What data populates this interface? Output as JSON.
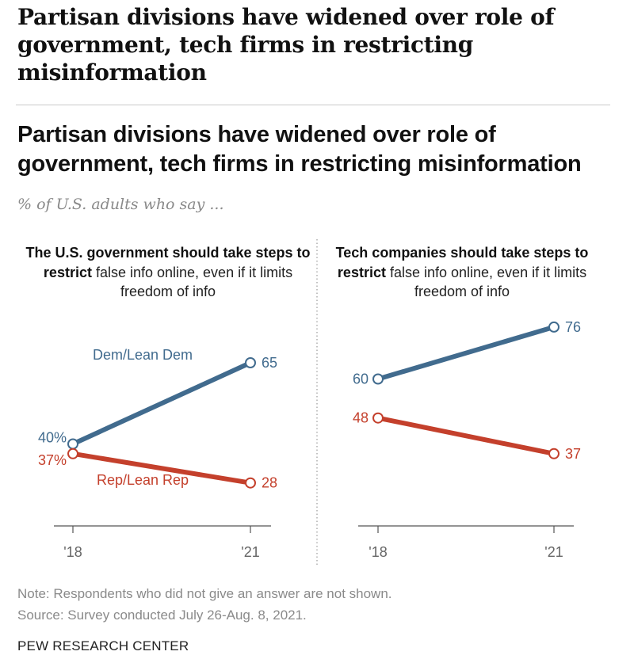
{
  "page_title": "Partisan divisions have widened over role of government, tech firms in restricting misinformation",
  "note": "Note: Respondents who did not give an answer are not shown.",
  "source": "Source: Survey conducted July 26-Aug. 8, 2021.",
  "brand": "PEW RESEARCH CENTER",
  "colors": {
    "dem": "#416b8e",
    "rep": "#c4402c",
    "axis": "#555555"
  },
  "chart_data": [
    {
      "type": "line",
      "title": "Partisan divisions have widened over role of government, tech firms in restricting misinformation",
      "subtitle": "% of U.S. adults who say ...",
      "panel_title_bold": "The U.S. government should take steps to restrict",
      "panel_title_rest": " false info online, even if it limits freedom of info",
      "x": [
        "'18",
        "'21"
      ],
      "series": [
        {
          "name": "Dem/Lean Dem",
          "values": [
            40,
            65
          ],
          "labels": [
            "40%",
            "65"
          ]
        },
        {
          "name": "Rep/Lean Rep",
          "values": [
            37,
            28
          ],
          "labels": [
            "37%",
            "28"
          ]
        }
      ]
    },
    {
      "type": "line",
      "panel_title_bold": "Tech companies should take steps to restrict",
      "panel_title_rest": " false info online, even if it limits freedom of info",
      "x": [
        "'18",
        "'21"
      ],
      "series": [
        {
          "name": "Dem/Lean Dem",
          "values": [
            60,
            76
          ],
          "labels": [
            "60",
            "76"
          ]
        },
        {
          "name": "Rep/Lean Rep",
          "values": [
            48,
            37
          ],
          "labels": [
            "48",
            "37"
          ]
        }
      ]
    }
  ]
}
